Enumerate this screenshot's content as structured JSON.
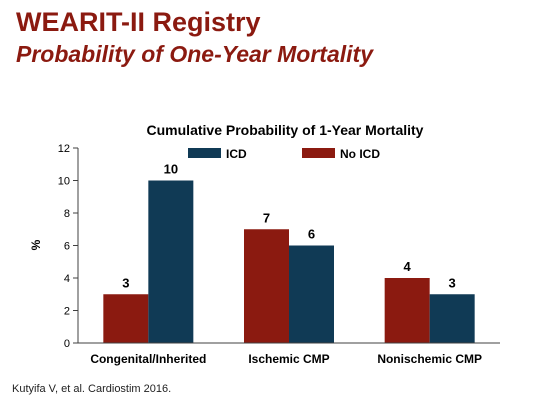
{
  "slide": {
    "title": "WEARIT-II Registry",
    "subtitle": "Probability of One-Year Mortality",
    "citation": "Kutyifa V, et al. Cardiostim 2016."
  },
  "colors": {
    "title": "#8b1a10",
    "no_icd": "#8b1a10",
    "icd": "#103a55"
  },
  "chart_data": {
    "type": "bar",
    "title": "Cumulative Probability of 1-Year Mortality",
    "xlabel": "",
    "ylabel": "%",
    "ylim": [
      0,
      12
    ],
    "yticks": [
      0,
      2,
      4,
      6,
      8,
      10,
      12
    ],
    "grid": false,
    "legend_position": "top",
    "categories": [
      "Congenital/Inherited",
      "Ischemic CMP",
      "Nonischemic CMP"
    ],
    "series": [
      {
        "name": "No ICD",
        "color": "#8b1a10",
        "values": [
          3,
          7,
          4
        ]
      },
      {
        "name": "ICD",
        "color": "#103a55",
        "values": [
          10,
          6,
          3
        ]
      }
    ],
    "legend_order": [
      "ICD",
      "No ICD"
    ]
  }
}
